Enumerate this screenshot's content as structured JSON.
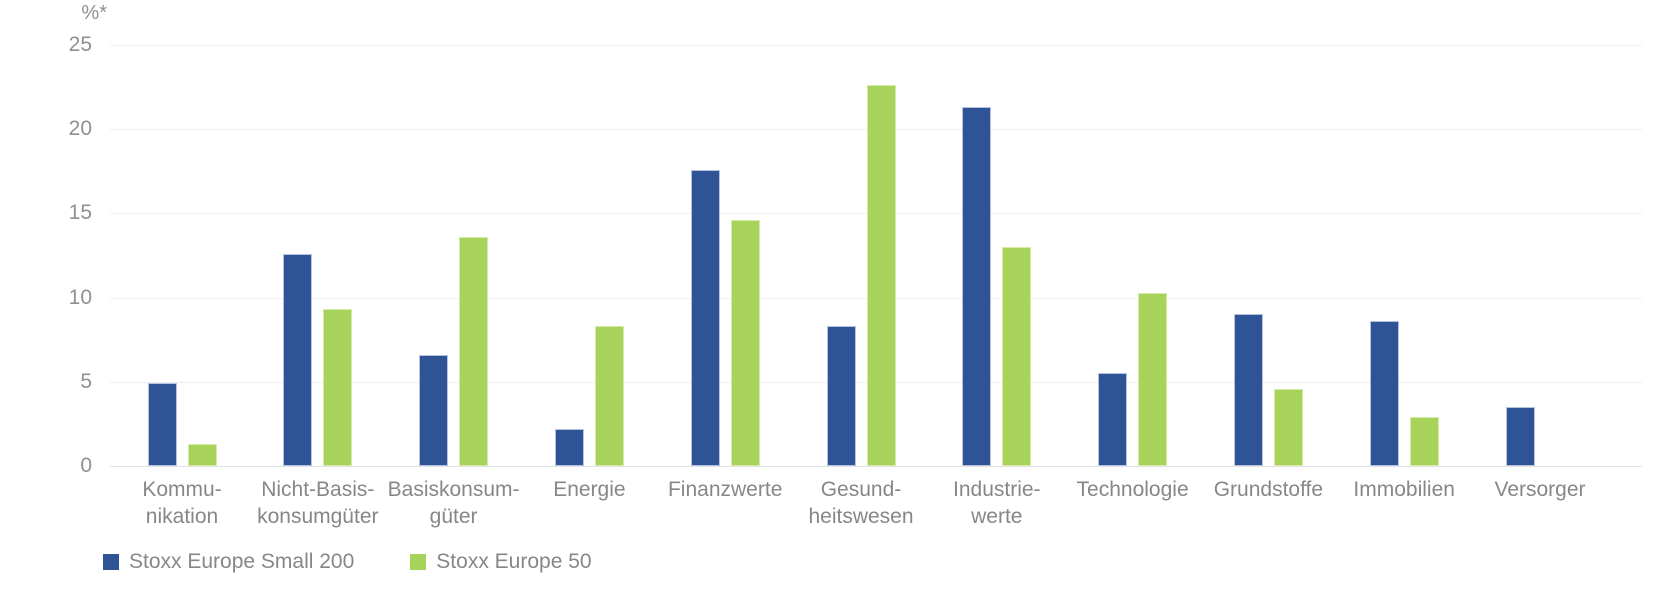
{
  "chart_data": {
    "type": "bar",
    "title": "",
    "unit_label": "%*",
    "xlabel": "",
    "ylabel": "%*",
    "ylim": [
      0,
      25
    ],
    "yticks": [
      0,
      5,
      10,
      15,
      20,
      25
    ],
    "grid": true,
    "legend_position": "bottom-left",
    "categories": [
      "Kommu-\nnikation",
      "Nicht-Basis-\nkonsumgüter",
      "Basiskonsum-\ngüter",
      "Energie",
      "Finanzwerte",
      "Gesund-\nheitswesen",
      "Industrie-\nwerte",
      "Technologie",
      "Grundstoffe",
      "Immobilien",
      "Versorger"
    ],
    "series": [
      {
        "name": "Stoxx Europe Small 200",
        "color": "#2F5496",
        "values": [
          4.9,
          12.6,
          6.6,
          2.2,
          17.6,
          8.3,
          21.3,
          5.5,
          9.0,
          8.6,
          3.5
        ]
      },
      {
        "name": "Stoxx Europe 50",
        "color": "#A8D35A",
        "values": [
          1.3,
          9.3,
          13.6,
          8.3,
          14.6,
          22.6,
          13.0,
          10.3,
          4.6,
          2.9,
          null
        ]
      }
    ]
  },
  "legend": {
    "items": [
      {
        "label": "Stoxx Europe Small 200",
        "color": "#2F5496"
      },
      {
        "label": "Stoxx Europe 50",
        "color": "#A8D35A"
      }
    ]
  },
  "colors": {
    "series_blue": "#2F5496",
    "series_green": "#A8D35A",
    "gridline": "#efefef",
    "axis_text": "#909090",
    "category_text": "#878787"
  }
}
